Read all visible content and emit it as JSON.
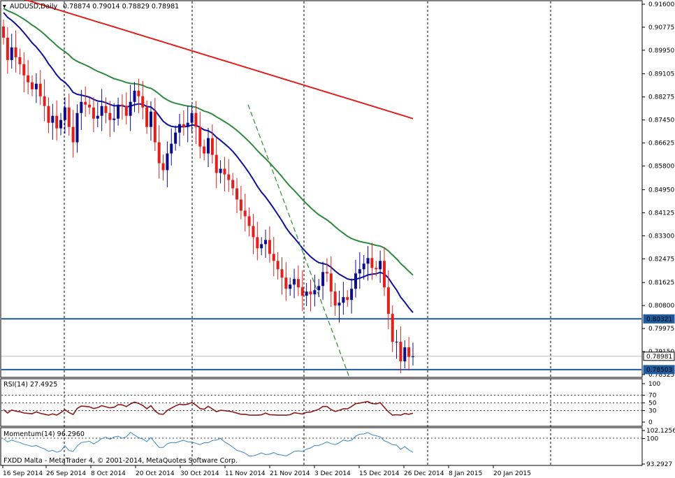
{
  "main": {
    "symbol": "AUDUSD,Daily",
    "ohlc": "0.78874 0.79014 0.78829 0.78981",
    "price_ticks": [
      "0.91600",
      "0.90775",
      "0.89950",
      "0.89105",
      "0.88275",
      "0.87450",
      "0.86625",
      "0.85800",
      "0.84950",
      "0.84125",
      "0.83300",
      "0.82475",
      "0.81625",
      "0.80800",
      "0.79975",
      "0.79150",
      "0.78325"
    ],
    "current_price": "0.78981",
    "hlines": [
      {
        "label": "0.80321",
        "color": "#1f5a9c"
      },
      {
        "label": "0.78503",
        "color": "#1f5a9c"
      }
    ],
    "colors": {
      "bull": "#0c0c8a",
      "bear": "#e0201c",
      "ma_red": "#e0201c",
      "ma_green": "#2e8b3e",
      "ma_blue": "#1010a0",
      "trend": "#2e8b2e"
    }
  },
  "rsi": {
    "label": "RSI(14) 27.4925",
    "ticks": [
      "100",
      "70",
      "50",
      "30",
      "0"
    ]
  },
  "momentum": {
    "label": "Momentum(14) 96.2960",
    "ticks": [
      "102.1256",
      "100",
      "93.2927"
    ]
  },
  "footer": {
    "copyright": "FXDD Malta - MetaTrader 4, © 2001-2014, MetaQuotes Software Corp.",
    "dates": [
      "16 Sep 2014",
      "26 Sep 2014",
      "8 Oct 2014",
      "20 Oct 2014",
      "30 Oct 2014",
      "11 Nov 2014",
      "21 Nov 2014",
      "3 Dec 2014",
      "15 Dec 2014",
      "26 Dec 2014",
      "8 Jan 2015",
      "20 Jan 2015"
    ]
  },
  "chart_data": {
    "type": "candlestick",
    "instrument": "AUDUSD",
    "timeframe": "Daily",
    "ylim": [
      0.7816,
      0.9175
    ],
    "close": [
      0.904,
      0.896,
      0.9005,
      0.897,
      0.8945,
      0.8905,
      0.888,
      0.8855,
      0.8875,
      0.883,
      0.8795,
      0.8735,
      0.876,
      0.8715,
      0.8745,
      0.879,
      0.872,
      0.8665,
      0.877,
      0.881,
      0.88,
      0.879,
      0.875,
      0.876,
      0.8795,
      0.877,
      0.8745,
      0.875,
      0.88,
      0.8795,
      0.876,
      0.881,
      0.885,
      0.883,
      0.879,
      0.872,
      0.8775,
      0.8665,
      0.859,
      0.8565,
      0.8625,
      0.866,
      0.87,
      0.873,
      0.872,
      0.8735,
      0.877,
      0.872,
      0.865,
      0.8625,
      0.868,
      0.862,
      0.8555,
      0.857,
      0.855,
      0.853,
      0.85,
      0.846,
      0.842,
      0.84,
      0.8365,
      0.8325,
      0.8285,
      0.83,
      0.8315,
      0.8265,
      0.824,
      0.821,
      0.818,
      0.814,
      0.8155,
      0.8175,
      0.8145,
      0.8115,
      0.813,
      0.812,
      0.8135,
      0.815,
      0.82,
      0.8195,
      0.813,
      0.808,
      0.809,
      0.811,
      0.81,
      0.814,
      0.8195,
      0.821,
      0.823,
      0.825,
      0.8215,
      0.821,
      0.824,
      0.8145,
      0.805,
      0.795,
      0.795,
      0.788,
      0.793,
      0.7896,
      0.7898
    ],
    "ma_red": {
      "start": 0.9195,
      "end": 0.8745
    },
    "ma_green": {
      "start": 0.914,
      "end": 0.827
    },
    "ma_blue": {
      "start": 0.913,
      "end": 0.8045
    },
    "rsi_range": [
      0,
      100
    ],
    "momentum_range": [
      93.2927,
      102.1256
    ]
  }
}
